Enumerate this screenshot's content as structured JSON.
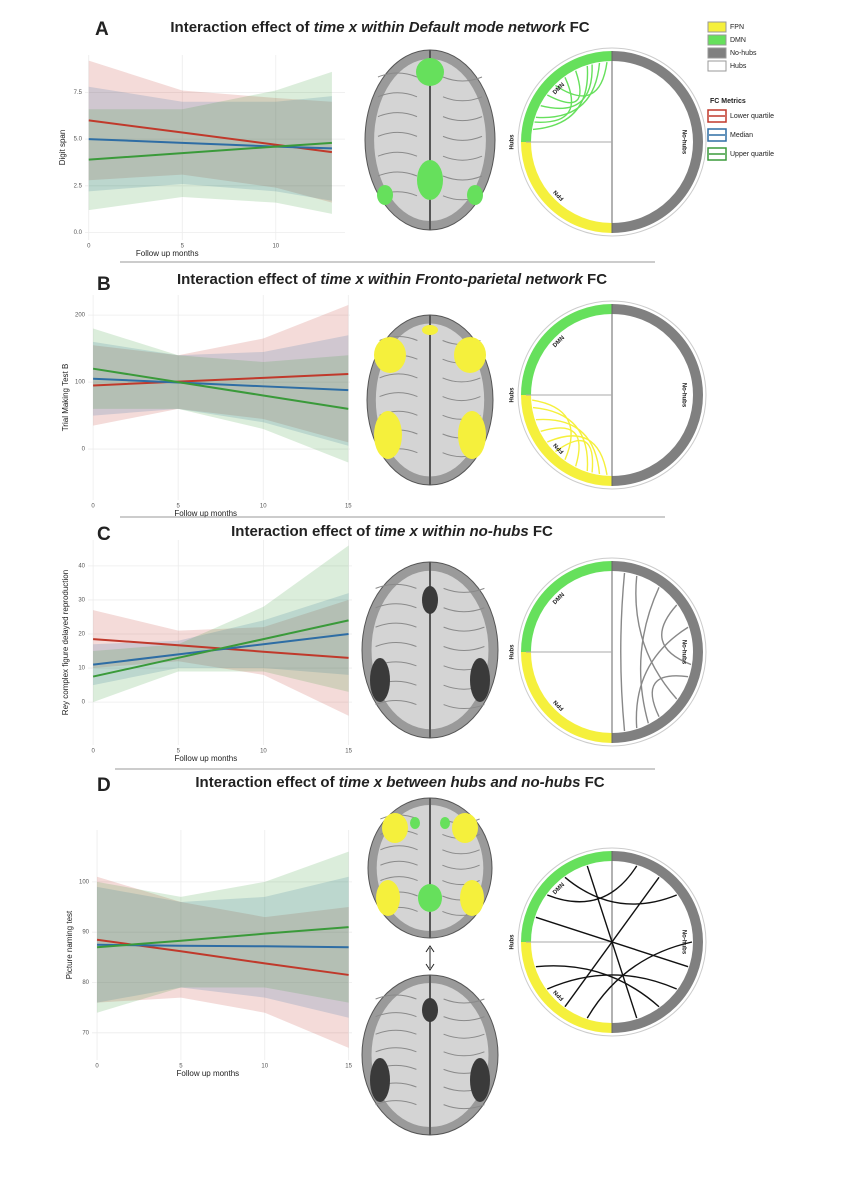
{
  "legend": {
    "networks": [
      {
        "name": "FPN",
        "color": "#f5f03c"
      },
      {
        "name": "DMN",
        "color": "#66e05c"
      },
      {
        "name": "No-hubs",
        "color": "#808080"
      },
      {
        "name": "Hubs",
        "color": "#ffffff"
      }
    ],
    "metrics_title": "FC Metrics"
  },
  "chord_labels": {
    "dmn": "DMN",
    "fpn": "FPN",
    "hubs": "Hubs",
    "nohubs": "No-hubs"
  },
  "chart_data": [
    {
      "type": "line",
      "panel": "A",
      "title": [
        "Interaction effect of",
        "time x within Default mode network",
        "FC"
      ],
      "x_label": "Follow up months",
      "y_label": "Digit span",
      "grid": true,
      "x": [
        0,
        5,
        10,
        13
      ],
      "xlim": [
        -0.2,
        13.7
      ],
      "xticks": [
        0,
        5,
        10
      ],
      "ylim": [
        -0.4,
        9.5
      ],
      "yticks": [
        {
          "value": 0,
          "label": "0.0"
        },
        {
          "value": 2.5,
          "label": "2.5"
        },
        {
          "value": 5,
          "label": "5.0"
        },
        {
          "value": 7.5,
          "label": "7.5"
        }
      ],
      "series": [
        {
          "name": "Lower quartile",
          "color": "#c0392b",
          "values": [
            6.0,
            5.35,
            4.7,
            4.3
          ],
          "upper": [
            9.2,
            7.6,
            7.2,
            7.0
          ],
          "lower": [
            2.8,
            3.1,
            2.4,
            1.6
          ]
        },
        {
          "name": "Median",
          "color": "#2e6da4",
          "values": [
            5.0,
            4.8,
            4.6,
            4.5
          ],
          "upper": [
            7.8,
            7.0,
            7.0,
            7.3
          ],
          "lower": [
            2.2,
            2.6,
            2.2,
            1.7
          ]
        },
        {
          "name": "Upper quartile",
          "color": "#3a9a3a",
          "values": [
            3.9,
            4.25,
            4.6,
            4.8
          ],
          "upper": [
            6.6,
            6.6,
            7.6,
            8.6
          ],
          "lower": [
            1.2,
            1.9,
            1.6,
            1.0
          ]
        }
      ]
    },
    {
      "type": "line",
      "panel": "B",
      "title": [
        "Interaction effect of",
        "time x within Fronto-parietal network",
        "FC"
      ],
      "x_label": "Follow up months",
      "y_label": "Trial Making Test B",
      "grid": true,
      "x": [
        0,
        5,
        10,
        15
      ],
      "xlim": [
        -0.3,
        15.1
      ],
      "xticks": [
        0,
        5,
        10,
        15
      ],
      "ylim": [
        -76,
        230
      ],
      "yticks": [
        0,
        100,
        200
      ],
      "series": [
        {
          "color": "#c0392b",
          "values": [
            95,
            100.7,
            106.3,
            112
          ],
          "upper": [
            155,
            140,
            165,
            215
          ],
          "lower": [
            35,
            60,
            45,
            10
          ]
        },
        {
          "color": "#2e6da4",
          "values": [
            105,
            99.3,
            93.7,
            88
          ],
          "upper": [
            160,
            140,
            145,
            170
          ],
          "lower": [
            50,
            60,
            40,
            5
          ]
        },
        {
          "color": "#3a9a3a",
          "values": [
            120,
            100,
            80,
            60
          ],
          "upper": [
            180,
            140,
            130,
            140
          ],
          "lower": [
            60,
            60,
            30,
            -20
          ]
        }
      ]
    },
    {
      "type": "line",
      "panel": "C",
      "title": [
        "Interaction effect of",
        "time x within no-hubs",
        "FC"
      ],
      "x_label": "Follow up months",
      "y_label": "Rey complex figure delayed reproduction",
      "grid": true,
      "x": [
        0,
        5,
        10,
        15
      ],
      "xlim": [
        -0.3,
        15.2
      ],
      "xticks": [
        0,
        5,
        10,
        15
      ],
      "ylim": [
        -12.6,
        47.6
      ],
      "yticks": [
        0,
        10,
        20,
        30,
        40
      ],
      "series": [
        {
          "color": "#c0392b",
          "values": [
            18.5,
            16.7,
            14.8,
            13
          ],
          "upper": [
            27,
            21,
            22,
            30
          ],
          "lower": [
            10,
            12,
            8,
            -4
          ]
        },
        {
          "color": "#2e6da4",
          "values": [
            11,
            14,
            17,
            20
          ],
          "upper": [
            17,
            18,
            24,
            32
          ],
          "lower": [
            5,
            10,
            10,
            8
          ]
        },
        {
          "color": "#3a9a3a",
          "values": [
            7.5,
            13,
            18.5,
            24
          ],
          "upper": [
            15,
            17,
            28,
            46
          ],
          "lower": [
            0,
            9,
            9,
            3
          ]
        }
      ]
    },
    {
      "type": "line",
      "panel": "D",
      "title": [
        "Interaction effect of",
        "time x between hubs and no-hubs",
        "FC"
      ],
      "x_label": "Follow up months",
      "y_label": "Picture naming test",
      "grid": true,
      "x": [
        0,
        5,
        10,
        15
      ],
      "xlim": [
        -0.3,
        15.2
      ],
      "xticks": [
        0,
        5,
        10,
        15
      ],
      "ylim": [
        64.6,
        110.3
      ],
      "yticks": [
        70,
        80,
        90,
        100
      ],
      "series": [
        {
          "color": "#c0392b",
          "values": [
            88.5,
            86.2,
            83.8,
            81.5
          ],
          "upper": [
            101,
            96,
            93,
            95
          ],
          "lower": [
            76,
            77,
            74,
            67
          ]
        },
        {
          "color": "#2e6da4",
          "values": [
            87.5,
            87.3,
            87.2,
            87
          ],
          "upper": [
            99,
            96,
            97,
            101
          ],
          "lower": [
            76,
            79,
            77,
            73
          ]
        },
        {
          "color": "#3a9a3a",
          "values": [
            87,
            88.3,
            89.7,
            91
          ],
          "upper": [
            100,
            97,
            100,
            106
          ],
          "lower": [
            74,
            79,
            79,
            76
          ]
        }
      ]
    }
  ]
}
